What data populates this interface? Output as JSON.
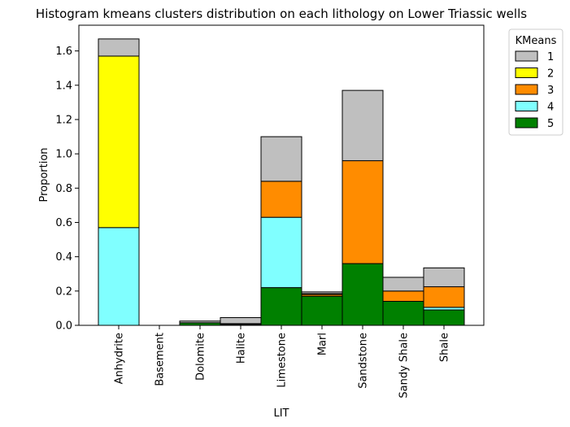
{
  "chart_data": {
    "type": "bar",
    "stacked": true,
    "title": "Histogram kmeans clusters distribution on each lithology on Lower Triassic wells",
    "xlabel": "LIT",
    "ylabel": "Proportion",
    "ylim": [
      0,
      1.75
    ],
    "yticks": [
      "0.0",
      "0.2",
      "0.4",
      "0.6",
      "0.8",
      "1.0",
      "1.2",
      "1.4",
      "1.6"
    ],
    "grid": false,
    "categories": [
      "Anhydrite",
      "Basement",
      "Dolomite",
      "Halite",
      "Limestone",
      "Marl",
      "Sandstone",
      "Sandy Shale",
      "Shale"
    ],
    "legend": {
      "title": "KMeans",
      "placement": "outside-top-right"
    },
    "series": [
      {
        "name": "5",
        "color": "#008000",
        "values": [
          0.0,
          0.0,
          0.015,
          0.005,
          0.22,
          0.17,
          0.36,
          0.14,
          0.09
        ]
      },
      {
        "name": "4",
        "color": "#80ffff",
        "values": [
          0.57,
          0.0,
          0.0,
          0.005,
          0.41,
          0.0,
          0.0,
          0.0,
          0.015
        ]
      },
      {
        "name": "3",
        "color": "#ff8c00",
        "values": [
          0.0,
          0.0,
          0.0,
          0.0,
          0.21,
          0.01,
          0.6,
          0.06,
          0.12
        ]
      },
      {
        "name": "2",
        "color": "#ffff00",
        "values": [
          1.0,
          0.0,
          0.0,
          0.0,
          0.0,
          0.005,
          0.0,
          0.0,
          0.0
        ]
      },
      {
        "name": "1",
        "color": "#bfbfbf",
        "values": [
          0.1,
          0.0,
          0.01,
          0.035,
          0.26,
          0.01,
          0.41,
          0.08,
          0.11
        ]
      }
    ]
  }
}
